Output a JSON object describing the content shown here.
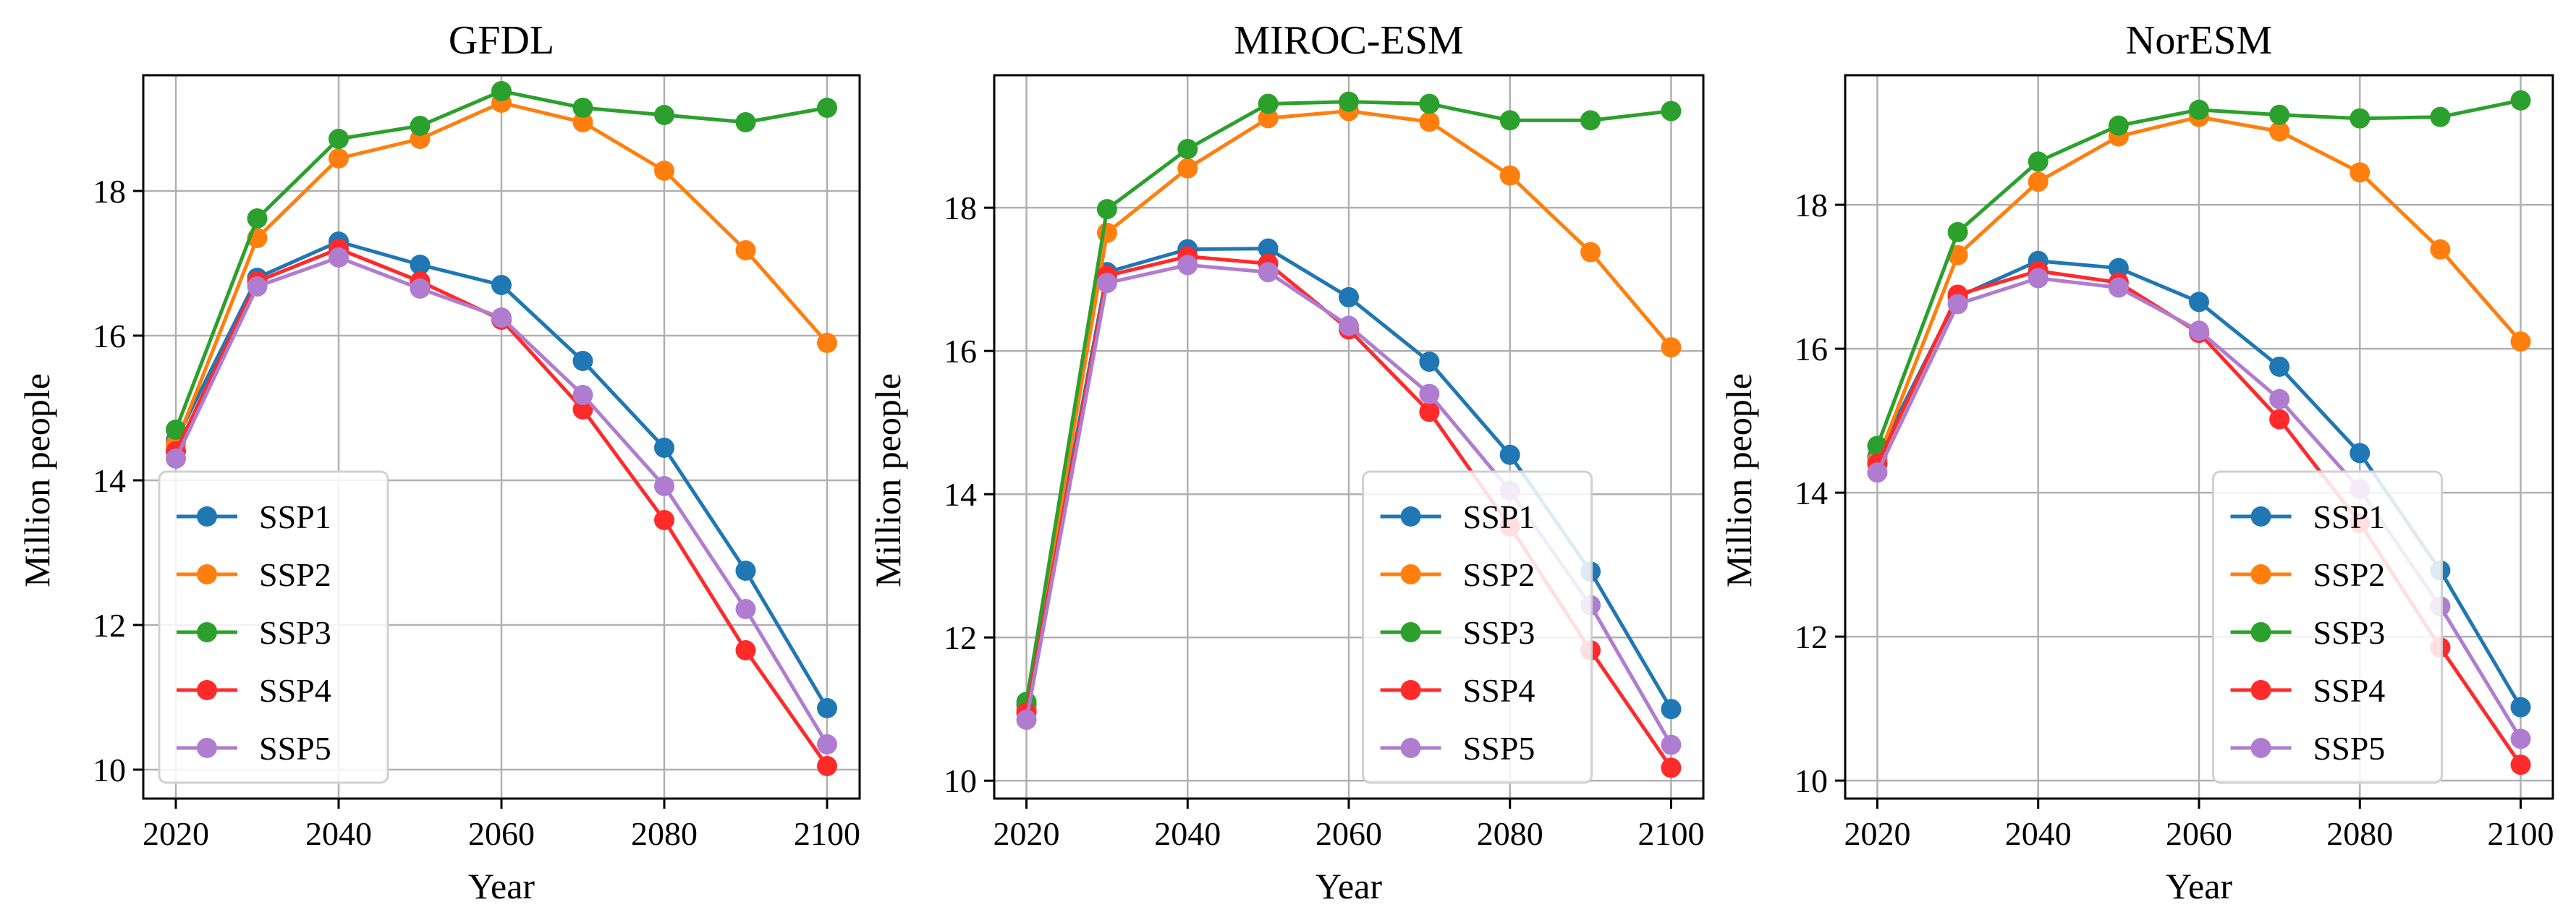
{
  "figure": {
    "panels": [
      "GFDL",
      "MIROC-ESM",
      "NorESM"
    ]
  },
  "series_colors": {
    "SSP1": "#1f77b4",
    "SSP2": "#ff7f0e",
    "SSP3": "#2ca02c",
    "SSP4": "#ff2a2a",
    "SSP5": "#b07ccf"
  },
  "chart_data": [
    {
      "type": "line",
      "title": "GFDL",
      "xlabel": "Year",
      "ylabel": "Million people",
      "x": [
        2020,
        2030,
        2040,
        2050,
        2060,
        2070,
        2080,
        2090,
        2100
      ],
      "xticks": [
        2020,
        2040,
        2060,
        2080,
        2100
      ],
      "yticks": [
        10,
        12,
        14,
        16,
        18
      ],
      "xlim": [
        2016,
        2104
      ],
      "ylim": [
        9.6,
        19.6
      ],
      "grid": true,
      "legend_position": "lower-left",
      "series": [
        {
          "name": "SSP1",
          "values": [
            14.55,
            16.8,
            17.3,
            16.98,
            16.7,
            15.65,
            14.45,
            12.75,
            10.85
          ]
        },
        {
          "name": "SSP2",
          "values": [
            14.5,
            17.35,
            18.45,
            18.72,
            19.22,
            18.95,
            18.28,
            17.18,
            15.9
          ]
        },
        {
          "name": "SSP3",
          "values": [
            14.7,
            17.62,
            18.72,
            18.9,
            19.38,
            19.15,
            19.05,
            18.95,
            19.15
          ]
        },
        {
          "name": "SSP4",
          "values": [
            14.4,
            16.75,
            17.2,
            16.75,
            16.22,
            14.98,
            13.45,
            11.65,
            10.05
          ]
        },
        {
          "name": "SSP5",
          "values": [
            14.3,
            16.68,
            17.08,
            16.65,
            16.25,
            15.18,
            13.92,
            12.22,
            10.35
          ]
        }
      ]
    },
    {
      "type": "line",
      "title": "MIROC-ESM",
      "xlabel": "Year",
      "ylabel": "Million people",
      "x": [
        2020,
        2030,
        2040,
        2050,
        2060,
        2070,
        2080,
        2090,
        2100
      ],
      "xticks": [
        2020,
        2040,
        2060,
        2080,
        2100
      ],
      "yticks": [
        10,
        12,
        14,
        16,
        18
      ],
      "xlim": [
        2016,
        2104
      ],
      "ylim": [
        9.75,
        19.85
      ],
      "grid": true,
      "legend_position": "lower-right",
      "series": [
        {
          "name": "SSP1",
          "values": [
            11.05,
            17.1,
            17.42,
            17.43,
            16.75,
            15.85,
            14.55,
            12.92,
            11.0
          ]
        },
        {
          "name": "SSP2",
          "values": [
            11.0,
            17.65,
            18.55,
            19.25,
            19.35,
            19.2,
            18.45,
            17.38,
            16.05
          ]
        },
        {
          "name": "SSP3",
          "values": [
            11.1,
            17.98,
            18.82,
            19.45,
            19.48,
            19.45,
            19.22,
            19.22,
            19.35
          ]
        },
        {
          "name": "SSP4",
          "values": [
            10.95,
            17.05,
            17.32,
            17.22,
            16.3,
            15.15,
            13.55,
            11.82,
            10.18
          ]
        },
        {
          "name": "SSP5",
          "values": [
            10.85,
            16.95,
            17.2,
            17.1,
            16.35,
            15.4,
            14.05,
            12.45,
            10.5
          ]
        }
      ]
    },
    {
      "type": "line",
      "title": "NorESM",
      "xlabel": "Year",
      "ylabel": "Million people",
      "x": [
        2020,
        2030,
        2040,
        2050,
        2060,
        2070,
        2080,
        2090,
        2100
      ],
      "xticks": [
        2020,
        2040,
        2060,
        2080,
        2100
      ],
      "yticks": [
        10,
        12,
        14,
        16,
        18
      ],
      "xlim": [
        2016,
        2104
      ],
      "ylim": [
        9.75,
        19.8
      ],
      "grid": true,
      "legend_position": "lower-right",
      "series": [
        {
          "name": "SSP1",
          "values": [
            14.5,
            16.72,
            17.22,
            17.12,
            16.65,
            15.75,
            14.55,
            12.92,
            11.02
          ]
        },
        {
          "name": "SSP2",
          "values": [
            14.45,
            17.3,
            18.32,
            18.95,
            19.22,
            19.02,
            18.45,
            17.38,
            16.1
          ]
        },
        {
          "name": "SSP3",
          "values": [
            14.65,
            17.62,
            18.6,
            19.1,
            19.32,
            19.25,
            19.2,
            19.22,
            19.45
          ]
        },
        {
          "name": "SSP4",
          "values": [
            14.4,
            16.75,
            17.08,
            16.92,
            16.22,
            15.02,
            13.58,
            11.85,
            10.22
          ]
        },
        {
          "name": "SSP5",
          "values": [
            14.28,
            16.62,
            16.98,
            16.85,
            16.25,
            15.3,
            14.05,
            12.42,
            10.58
          ]
        }
      ]
    }
  ]
}
